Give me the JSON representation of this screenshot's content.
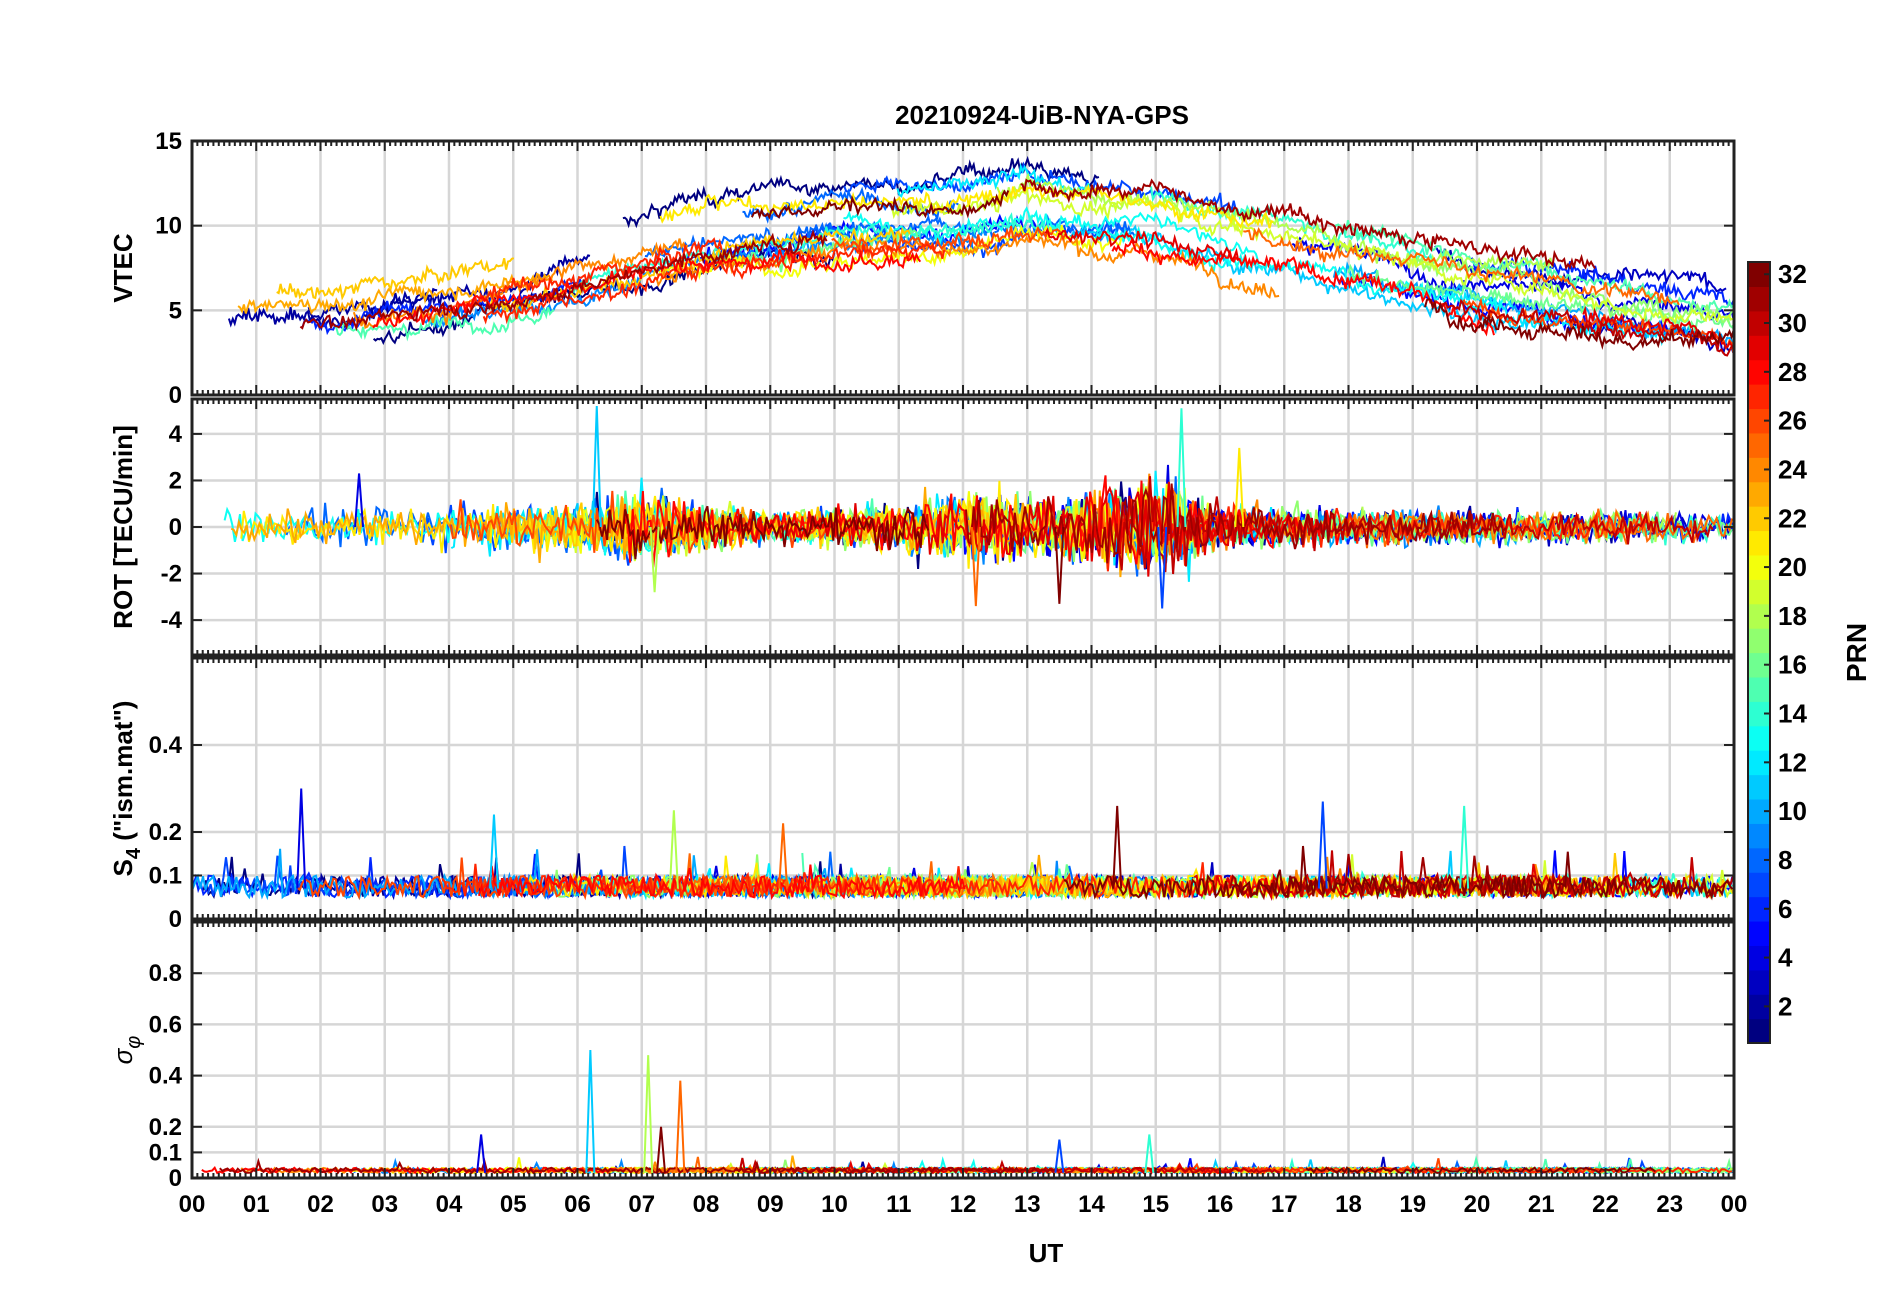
{
  "chart_data": {
    "type": "line",
    "title": "20210924-UiB-NYA-GPS",
    "xlabel": "UT",
    "x_range_hours": [
      0,
      24
    ],
    "x_tick_labels": [
      "00",
      "01",
      "02",
      "03",
      "04",
      "05",
      "06",
      "07",
      "08",
      "09",
      "10",
      "11",
      "12",
      "13",
      "14",
      "15",
      "16",
      "17",
      "18",
      "19",
      "20",
      "21",
      "22",
      "23",
      "00"
    ],
    "panels": [
      {
        "id": "vtec",
        "ylabel": "VTEC",
        "ylim": [
          0,
          15
        ],
        "y_ticks": [
          0,
          5,
          10,
          15
        ],
        "y_tick_labels": [
          "0",
          "5",
          "10",
          "15"
        ],
        "grid": true,
        "approx_envelope": {
          "description": "approximate median VTEC across satellites (TECU) vs UT hour",
          "hours": [
            0,
            2,
            4,
            6,
            8,
            10,
            12,
            13,
            14,
            15,
            16,
            18,
            20,
            22,
            24
          ],
          "values": [
            4.5,
            5,
            6,
            7.5,
            9.5,
            10.5,
            10.5,
            11,
            10.5,
            10.5,
            9.5,
            8,
            6.5,
            5.5,
            4.5
          ]
        }
      },
      {
        "id": "rot",
        "ylabel": "ROT [TECU/min]",
        "ylim": [
          -5.5,
          5.5
        ],
        "y_ticks": [
          -4,
          -2,
          0,
          2,
          4
        ],
        "y_tick_labels": [
          "-4",
          "-2",
          "0",
          "2",
          "4"
        ],
        "grid": true,
        "approx_envelope": {
          "description": "approximate ROT spread amplitude (TECU/min) vs UT hour, spikes noted separately",
          "hours": [
            0,
            4,
            6,
            7,
            9,
            11,
            12,
            13,
            14,
            15,
            16,
            18,
            24
          ],
          "values": [
            0.6,
            0.7,
            0.9,
            1.2,
            0.5,
            0.8,
            1.4,
            1.0,
            1.2,
            1.8,
            0.8,
            0.6,
            0.5
          ],
          "spikes": [
            {
              "hour": 2.6,
              "value": 2.3
            },
            {
              "hour": 6.3,
              "value": 5.2
            },
            {
              "hour": 7.2,
              "value": -2.8
            },
            {
              "hour": 12.2,
              "value": -3.4
            },
            {
              "hour": 13.5,
              "value": -3.3
            },
            {
              "hour": 15.1,
              "value": -3.5
            },
            {
              "hour": 15.4,
              "value": 5.1
            },
            {
              "hour": 16.3,
              "value": 3.4
            }
          ]
        }
      },
      {
        "id": "s4",
        "ylabel": "S_4 (\"ism.mat\")",
        "ylim": [
          0,
          0.6
        ],
        "y_ticks": [
          0,
          0.1,
          0.2,
          0.4
        ],
        "y_tick_labels": [
          "0",
          "0.1",
          "0.2",
          "0.4"
        ],
        "grid": true,
        "approx_envelope": {
          "description": "typical S4 baseline ~0.05-0.1 with peaks",
          "baseline": 0.07,
          "peaks": [
            {
              "hour": 1.7,
              "value": 0.3
            },
            {
              "hour": 4.7,
              "value": 0.24
            },
            {
              "hour": 7.5,
              "value": 0.25
            },
            {
              "hour": 9.2,
              "value": 0.22
            },
            {
              "hour": 14.4,
              "value": 0.26
            },
            {
              "hour": 17.6,
              "value": 0.27
            },
            {
              "hour": 19.8,
              "value": 0.26
            }
          ]
        }
      },
      {
        "id": "sigma_phi",
        "ylabel": "σ_φ",
        "ylim": [
          0,
          1
        ],
        "y_ticks": [
          0,
          0.1,
          0.2,
          0.4,
          0.6,
          0.8
        ],
        "y_tick_labels": [
          "0",
          "0.1",
          "0.2",
          "0.4",
          "0.6",
          "0.8"
        ],
        "grid": true,
        "approx_envelope": {
          "description": "sigma phi baseline ~0.02 with spikes",
          "baseline": 0.02,
          "peaks": [
            {
              "hour": 4.5,
              "value": 0.17
            },
            {
              "hour": 6.2,
              "value": 0.5
            },
            {
              "hour": 7.1,
              "value": 0.48
            },
            {
              "hour": 7.6,
              "value": 0.38
            },
            {
              "hour": 7.3,
              "value": 0.2
            },
            {
              "hour": 13.5,
              "value": 0.15
            },
            {
              "hour": 14.9,
              "value": 0.17
            }
          ]
        }
      }
    ],
    "colorbar": {
      "label": "PRN",
      "range": [
        1,
        32
      ],
      "tick_labels": [
        "2",
        "4",
        "6",
        "8",
        "10",
        "12",
        "14",
        "16",
        "18",
        "20",
        "22",
        "24",
        "26",
        "28",
        "30",
        "32"
      ],
      "colormap": "jet",
      "levels": 32
    },
    "series_count": 32,
    "series_note": "one noisy trace per GPS satellite PRN 1-32, colored by PRN"
  }
}
